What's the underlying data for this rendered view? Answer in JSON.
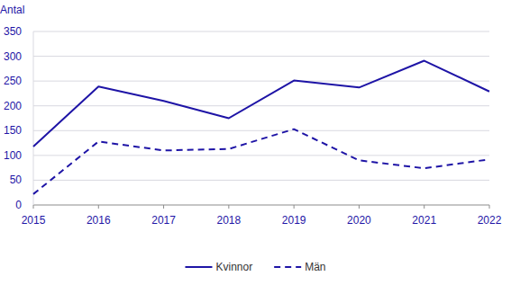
{
  "chart_data": {
    "type": "line",
    "y_label": "Antal",
    "categories": [
      "2015",
      "2016",
      "2017",
      "2018",
      "2019",
      "2020",
      "2021",
      "2022"
    ],
    "series": [
      {
        "name": "Kvinnor",
        "color": "#1e14a6",
        "line_style": "solid",
        "values": [
          118,
          239,
          210,
          175,
          251,
          237,
          291,
          229
        ]
      },
      {
        "name": "Män",
        "color": "#1e14a6",
        "line_style": "dashed",
        "values": [
          22,
          128,
          110,
          113,
          153,
          90,
          74,
          92
        ]
      }
    ],
    "ylim": [
      0,
      350
    ],
    "yticks": [
      0,
      50,
      100,
      150,
      200,
      250,
      300,
      350
    ],
    "grid": true,
    "legend": "bottom"
  }
}
